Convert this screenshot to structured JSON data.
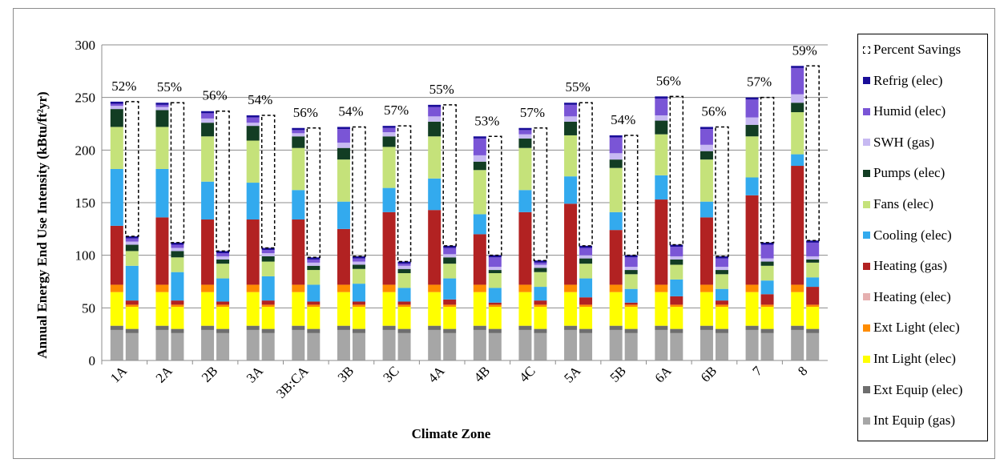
{
  "chart_data": {
    "type": "bar",
    "stacked": true,
    "xlabel": "Climate Zone",
    "ylabel": "Annual Energy End Use Intensity (kBtu/ft²yr)",
    "ylim": [
      0,
      300
    ],
    "yticks": [
      0,
      50,
      100,
      150,
      200,
      250,
      300
    ],
    "grid": true,
    "legend_position": "right",
    "categories": [
      "1A",
      "2A",
      "2B",
      "3A",
      "3B:CA",
      "3B",
      "3C",
      "4A",
      "4B",
      "4C",
      "5A",
      "5B",
      "6A",
      "6B",
      "7",
      "8"
    ],
    "series": [
      {
        "name": "Int Equip (gas)",
        "color": "#a6a6a6"
      },
      {
        "name": "Ext Equip (elec)",
        "color": "#6e6e6e"
      },
      {
        "name": "Int Light (elec)",
        "color": "#ffff00"
      },
      {
        "name": "Ext Light (elec)",
        "color": "#ff8c00"
      },
      {
        "name": "Heating (elec)",
        "color": "#e6b0b0"
      },
      {
        "name": "Heating (gas)",
        "color": "#b22222"
      },
      {
        "name": "Cooling (elec)",
        "color": "#33aaee"
      },
      {
        "name": "Fans (elec)",
        "color": "#c5e27a"
      },
      {
        "name": "Pumps (elec)",
        "color": "#123d23"
      },
      {
        "name": "SWH (gas)",
        "color": "#c7b9f2"
      },
      {
        "name": "Humid (elec)",
        "color": "#7a55d6"
      },
      {
        "name": "Refrig (elec)",
        "color": "#1a0d99"
      }
    ],
    "percent_series_name": "Percent Savings",
    "baseline": [
      [
        29,
        4,
        32,
        7,
        0,
        56,
        54,
        40,
        17,
        3,
        2,
        2
      ],
      [
        29,
        4,
        32,
        7,
        0,
        64,
        46,
        40,
        16,
        3,
        2,
        2
      ],
      [
        29,
        4,
        32,
        7,
        0,
        62,
        36,
        43,
        13,
        4,
        5,
        2
      ],
      [
        29,
        4,
        32,
        7,
        0,
        62,
        35,
        40,
        14,
        3,
        5,
        2
      ],
      [
        29,
        4,
        32,
        7,
        0,
        62,
        28,
        40,
        11,
        3,
        3,
        2
      ],
      [
        29,
        4,
        32,
        7,
        0,
        53,
        26,
        40,
        11,
        5,
        13,
        2
      ],
      [
        29,
        4,
        32,
        7,
        0,
        69,
        23,
        39,
        10,
        4,
        4,
        2
      ],
      [
        29,
        4,
        32,
        7,
        0,
        71,
        30,
        40,
        14,
        5,
        9,
        2
      ],
      [
        29,
        4,
        32,
        7,
        0,
        48,
        19,
        42,
        8,
        6,
        16,
        2
      ],
      [
        29,
        4,
        32,
        7,
        0,
        69,
        21,
        40,
        9,
        4,
        4,
        2
      ],
      [
        29,
        4,
        32,
        7,
        0,
        77,
        26,
        39,
        13,
        5,
        11,
        2
      ],
      [
        29,
        4,
        32,
        7,
        0,
        52,
        17,
        42,
        8,
        6,
        15,
        2
      ],
      [
        29,
        4,
        32,
        7,
        0,
        81,
        23,
        39,
        13,
        5,
        16,
        2
      ],
      [
        29,
        4,
        32,
        7,
        0,
        64,
        15,
        40,
        8,
        6,
        15,
        2
      ],
      [
        29,
        4,
        32,
        7,
        0,
        85,
        17,
        39,
        11,
        7,
        17,
        2
      ],
      [
        29,
        4,
        32,
        7,
        0,
        113,
        11,
        40,
        9,
        8,
        25,
        2
      ]
    ],
    "efficient": [
      [
        26,
        4,
        21,
        2,
        0,
        4,
        33,
        14,
        6,
        3,
        3,
        2
      ],
      [
        26,
        4,
        21,
        2,
        0,
        4,
        27,
        14,
        6,
        3,
        3,
        2
      ],
      [
        26,
        4,
        21,
        2,
        0,
        3,
        22,
        14,
        4,
        3,
        3,
        2
      ],
      [
        26,
        4,
        21,
        2,
        0,
        4,
        23,
        14,
        5,
        3,
        3,
        2
      ],
      [
        26,
        4,
        21,
        2,
        0,
        3,
        16,
        14,
        4,
        3,
        3,
        2
      ],
      [
        26,
        4,
        21,
        2,
        0,
        3,
        17,
        14,
        4,
        3,
        3,
        2
      ],
      [
        26,
        4,
        21,
        2,
        0,
        3,
        13,
        14,
        4,
        3,
        2,
        2
      ],
      [
        26,
        4,
        21,
        2,
        0,
        5,
        20,
        14,
        6,
        3,
        6,
        2
      ],
      [
        26,
        4,
        21,
        2,
        0,
        2,
        14,
        14,
        3,
        3,
        9,
        2
      ],
      [
        26,
        4,
        21,
        2,
        0,
        4,
        13,
        14,
        4,
        3,
        2,
        2
      ],
      [
        26,
        4,
        21,
        2,
        0,
        7,
        18,
        14,
        5,
        3,
        7,
        2
      ],
      [
        26,
        4,
        21,
        2,
        0,
        2,
        13,
        14,
        4,
        3,
        9,
        2
      ],
      [
        26,
        4,
        21,
        2,
        0,
        8,
        16,
        14,
        5,
        3,
        9,
        2
      ],
      [
        26,
        4,
        21,
        2,
        0,
        4,
        11,
        14,
        4,
        3,
        8,
        2
      ],
      [
        26,
        4,
        21,
        2,
        0,
        10,
        13,
        14,
        4,
        3,
        13,
        2
      ],
      [
        26,
        4,
        21,
        2,
        0,
        17,
        9,
        14,
        3,
        3,
        13,
        2
      ]
    ],
    "percent_savings": [
      "52%",
      "55%",
      "56%",
      "54%",
      "56%",
      "54%",
      "57%",
      "55%",
      "53%",
      "57%",
      "55%",
      "54%",
      "56%",
      "56%",
      "57%",
      "59%"
    ]
  }
}
